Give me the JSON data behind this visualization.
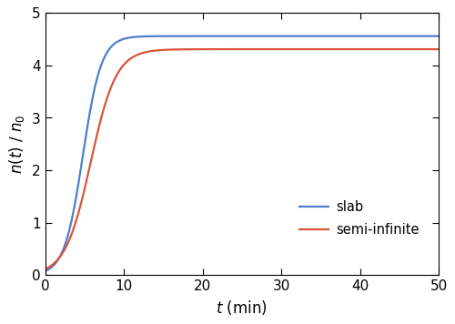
{
  "xlim": [
    0,
    50
  ],
  "ylim": [
    0,
    5
  ],
  "yticks": [
    0,
    1,
    2,
    3,
    4,
    5
  ],
  "xticks": [
    0,
    10,
    20,
    30,
    40,
    50
  ],
  "blue_label": "slab",
  "red_label": "semi-infinite",
  "blue_color": "#4f7ecb",
  "red_color": "#d9543a",
  "blue_plateau": 4.56,
  "red_plateau": 4.31,
  "blue_k": 0.85,
  "red_k": 0.62,
  "blue_t0": 4.8,
  "red_t0": 5.8,
  "line_width": 1.6,
  "background_color": "#ffffff",
  "legend_fontsize": 10.5,
  "tick_fontsize": 11,
  "axis_fontsize": 12
}
